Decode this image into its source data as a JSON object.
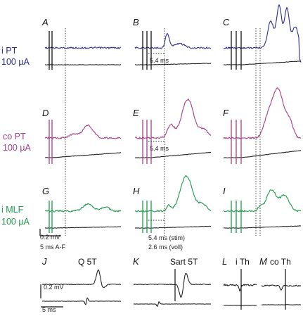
{
  "chart_data": {
    "type": "line",
    "colors": {
      "blue": "#2b2a8e",
      "magenta": "#a63d86",
      "green": "#1a9a4a",
      "black": "#111111"
    },
    "rows": [
      {
        "label_line1": "i PT",
        "label_line2": "100 µA",
        "color": "#2b2a8e"
      },
      {
        "label_line1": "co PT",
        "label_line2": "100 µA",
        "color": "#a63d86"
      },
      {
        "label_line1": "i MLF",
        "label_line2": "100 µA",
        "color": "#1a9a4a"
      }
    ],
    "panels": {
      "A": "A",
      "B": "B",
      "C": "C",
      "D": "D",
      "E": "E",
      "F": "F",
      "G": "G",
      "H": "H",
      "I": "I",
      "J": "J",
      "K": "K",
      "L": "L",
      "M": "M"
    },
    "annotations": {
      "b_latency": "5.4 ms",
      "e_latency": "5.4 ms",
      "h_stim": "5.4 ms (stim)",
      "h_voll": "2.6 ms (voll)",
      "scale_amp_AF": "0.2 mV",
      "scale_time_AF": "5 ms A-F",
      "scale_amp_J": "0.2 mV",
      "scale_time_J": "5 ms"
    },
    "bottom_titles": {
      "J": "Q 5T",
      "K": "Sart 5T",
      "L": "i Th",
      "M": "co Th"
    }
  }
}
